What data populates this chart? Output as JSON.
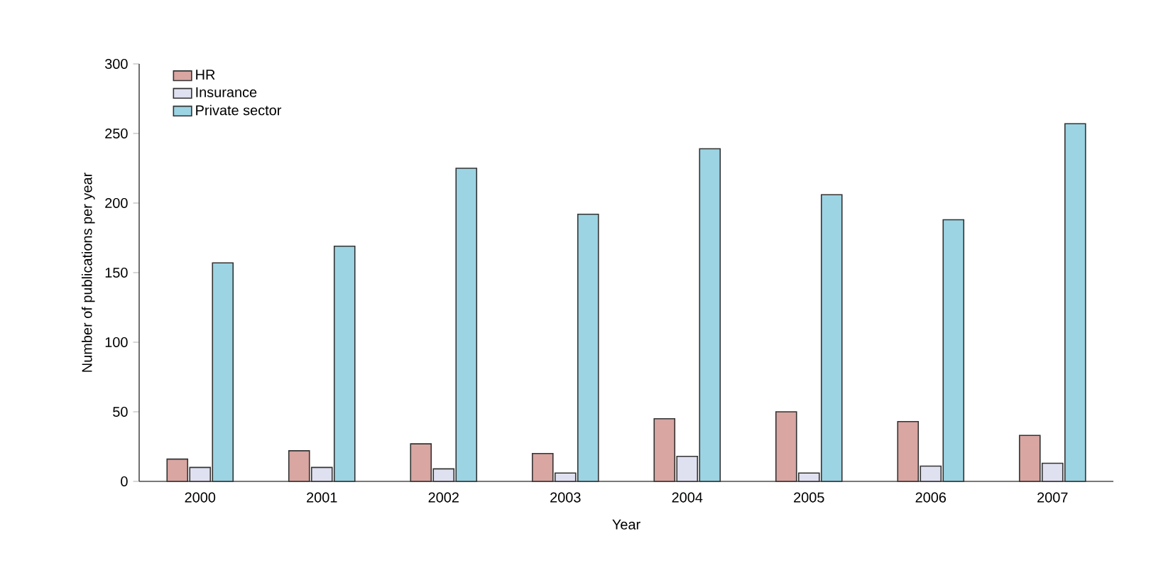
{
  "chart_data": {
    "type": "bar",
    "xlabel": "Year",
    "ylabel": "Number of publications per year",
    "categories": [
      "2000",
      "2001",
      "2002",
      "2003",
      "2004",
      "2005",
      "2006",
      "2007"
    ],
    "series": [
      {
        "name": "HR",
        "color": "#d9a6a2",
        "values": [
          16,
          22,
          27,
          20,
          45,
          50,
          43,
          33
        ]
      },
      {
        "name": "Insurance",
        "color": "#e0e1f0",
        "values": [
          10,
          10,
          9,
          6,
          18,
          6,
          11,
          13
        ]
      },
      {
        "name": "Private sector",
        "color": "#9cd4e3",
        "values": [
          157,
          169,
          225,
          192,
          239,
          206,
          188,
          257
        ]
      }
    ],
    "ylim": [
      0,
      300
    ],
    "yticks": [
      0,
      50,
      100,
      150,
      200,
      250,
      300
    ],
    "legend": "top left",
    "grid": false
  }
}
